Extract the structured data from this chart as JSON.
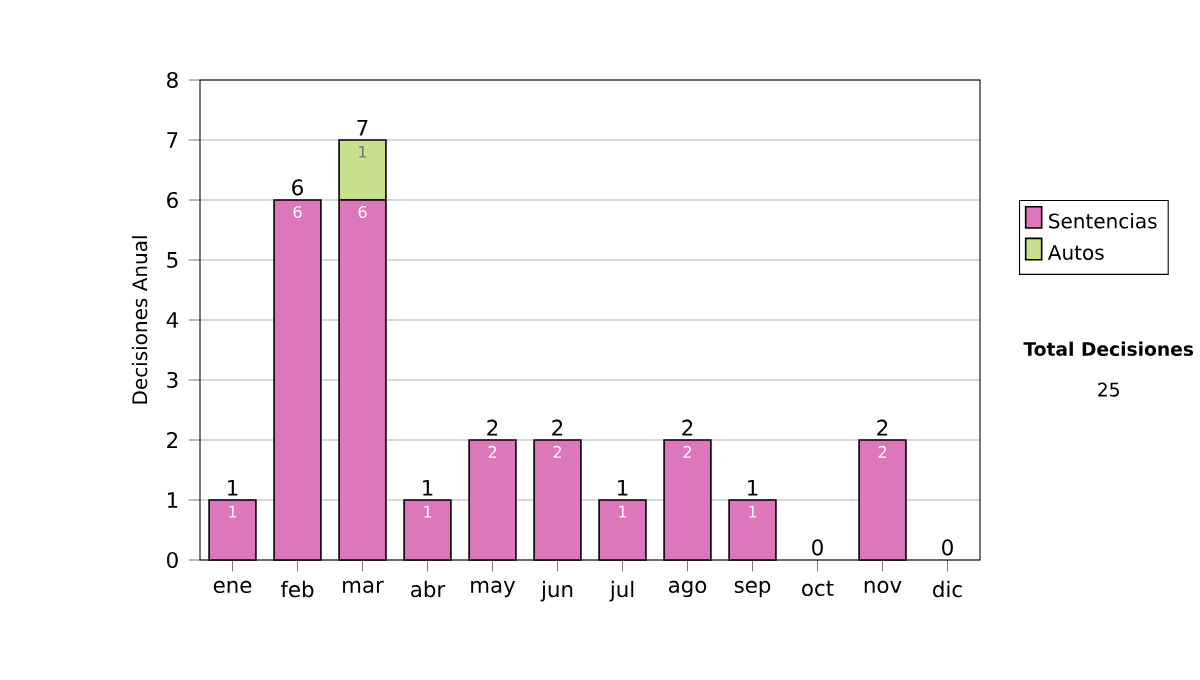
{
  "chart_data": {
    "type": "bar",
    "stacked": true,
    "ylabel": "Decisiones Anual",
    "categories": [
      "ene",
      "feb",
      "mar",
      "abr",
      "may",
      "jun",
      "jul",
      "ago",
      "sep",
      "oct",
      "nov",
      "dic"
    ],
    "series": [
      {
        "name": "Sentencias",
        "color": "#dd77bb",
        "values": [
          1,
          6,
          6,
          1,
          2,
          2,
          1,
          2,
          1,
          0,
          2,
          0
        ],
        "value_labels": [
          "1",
          "6",
          "6",
          "1",
          "2",
          "2",
          "1",
          "2",
          "1",
          null,
          "2",
          null
        ]
      },
      {
        "name": "Autos",
        "color": "#c8e08c",
        "values": [
          0,
          0,
          1,
          0,
          0,
          0,
          0,
          0,
          0,
          0,
          0,
          0
        ],
        "value_labels": [
          null,
          null,
          "1",
          null,
          null,
          null,
          null,
          null,
          null,
          null,
          null,
          null
        ]
      }
    ],
    "totals": [
      "1",
      "6",
      "7",
      "1",
      "2",
      "2",
      "1",
      "2",
      "1",
      "0",
      "2",
      "0"
    ],
    "ylim": [
      0,
      8
    ],
    "yticks": [
      0,
      1,
      2,
      3,
      4,
      5,
      6,
      7,
      8
    ],
    "grid": "y",
    "legend": "right",
    "annotations": [
      "Total Decisiones",
      "25"
    ]
  }
}
